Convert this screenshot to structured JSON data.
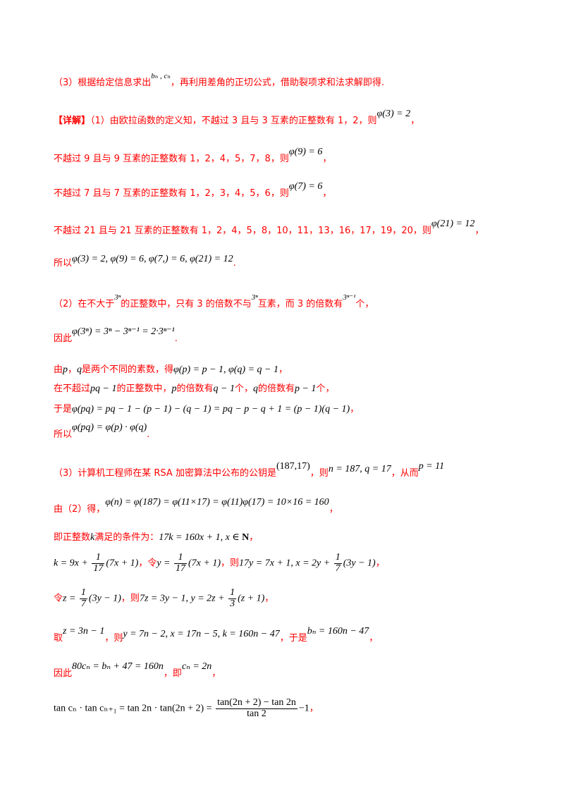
{
  "lines": {
    "l1": {
      "pre": "（3）根据给定信息求出",
      "math": "bₙ , cₙ",
      "post": "，再利用差角的正切公式，借助裂项求和法求解即得."
    },
    "l2": {
      "tag": "【详解】",
      "pre": "（1）由欧拉函数的定义知，不越过 3 且与 3 互素的正整数有 1，2，则",
      "math": "φ(3) = 2",
      "post": "，"
    },
    "l3": {
      "pre": "不越过 9 且与 9 互素的正整数有 1，2，4，5，7，8，则",
      "math": "φ(9) = 6",
      "post": "，"
    },
    "l4": {
      "pre": "不越过 7 且与 7 互素的正整数有 1，2，3，4，5，6，则",
      "math": "φ(7) = 6",
      "post": "，"
    },
    "l5": {
      "pre": "不越过 21 且与 21 互素的正整数有 1，2，4，5，8，10，11，13，16，17，19，20，则",
      "math": "φ(21) = 12",
      "post": "，"
    },
    "l6": {
      "pre": "所以",
      "math": "φ(3) = 2, φ(9) = 6, φ(7,) = 6, φ(21) = 12",
      "post": "."
    },
    "l7": {
      "pre": "（2）在不大于",
      "m1": "3ⁿ",
      "mid1": "的正整数中，只有 3 的倍数不与",
      "m2": "3ⁿ",
      "mid2": "互素，而 3 的倍数有",
      "m3": "3ⁿ⁻¹",
      "post": "个，"
    },
    "l8": {
      "pre": "因此",
      "math": "φ(3ⁿ) = 3ⁿ − 3ⁿ⁻¹ = 2·3ⁿ⁻¹",
      "post": "."
    },
    "l9": {
      "pre": "由",
      "m1": "p",
      "mid1": "，",
      "m2": "q",
      "mid2": "是两个不同的素数，得",
      "m3": "φ(p) = p − 1, φ(q) = q − 1",
      "post": "，"
    },
    "l10": {
      "pre": "在不超过",
      "m1": "pq − 1",
      "mid1": "的正整数中，",
      "m2": "p",
      "mid2": "的倍数有",
      "m3": "q − 1",
      "mid3": "个，",
      "m4": "q",
      "mid4": "的倍数有",
      "m5": "p − 1",
      "post": "个，"
    },
    "l11": {
      "pre": "于是",
      "math": "φ(pq) = pq − 1 − (p − 1) − (q − 1) = pq − p − q + 1 = (p − 1)(q − 1)",
      "post": "，"
    },
    "l12": {
      "pre": "所以",
      "math": "φ(pq) = φ(p) · φ(q)",
      "post": "."
    },
    "l13": {
      "pre": "（3）计算机工程师在某 RSA 加密算法中公布的公钥是",
      "m1": "(187,17)",
      "mid1": "，则",
      "m2": "n = 187, q = 17",
      "mid2": "，从而",
      "m3": "p = 11"
    },
    "l14": {
      "pre": "由（2）得，",
      "math": "φ(n) = φ(187) = φ(11×17) = φ(11)φ(17) = 10×16 = 160",
      "post": "，"
    },
    "l15": {
      "pre": "即正整数",
      "m1": "k",
      "mid1": "满足的条件为：",
      "m2": "17k = 160x + 1, x ∈ ",
      "bold": "N",
      "post": "，"
    },
    "l16": {
      "m1a": "k = 9x + ",
      "f1n": "1",
      "f1d": "17",
      "m1b": "(7x + 1)",
      "mid1": "，令",
      "m2a": "y = ",
      "f2n": "1",
      "f2d": "17",
      "m2b": "(7x + 1)",
      "mid2": "，则",
      "m3a": "17y = 7x + 1, x = 2y + ",
      "f3n": "1",
      "f3d": "7",
      "m3b": "(3y − 1)",
      "post": "，"
    },
    "l17": {
      "pre": "令",
      "m1a": "z = ",
      "f1n": "1",
      "f1d": "7",
      "m1b": "(3y − 1)",
      "mid1": "，则",
      "m2a": "7z = 3y − 1, y = 2z + ",
      "f2n": "1",
      "f2d": "3",
      "m2b": "(z + 1)",
      "post": "，"
    },
    "l18": {
      "pre": "取",
      "m1": "z = 3n − 1",
      "mid1": "，则",
      "m2": "y = 7n − 2, x = 17n − 5, k = 160n − 47",
      "mid2": "，于是",
      "m3": "bₙ = 160n − 47",
      "post": "，"
    },
    "l19": {
      "pre": "因此",
      "m1": "80cₙ = bₙ + 47 = 160n",
      "mid1": "，即",
      "m2": "cₙ = 2n",
      "post": "，"
    },
    "l20": {
      "m1": "tan cₙ · tan cₙ₊₁ = tan 2n · tan(2n + 2) = ",
      "fn": "tan(2n + 2) − tan 2n",
      "fd": "tan 2",
      "m2": "−1",
      "post": "，"
    }
  }
}
